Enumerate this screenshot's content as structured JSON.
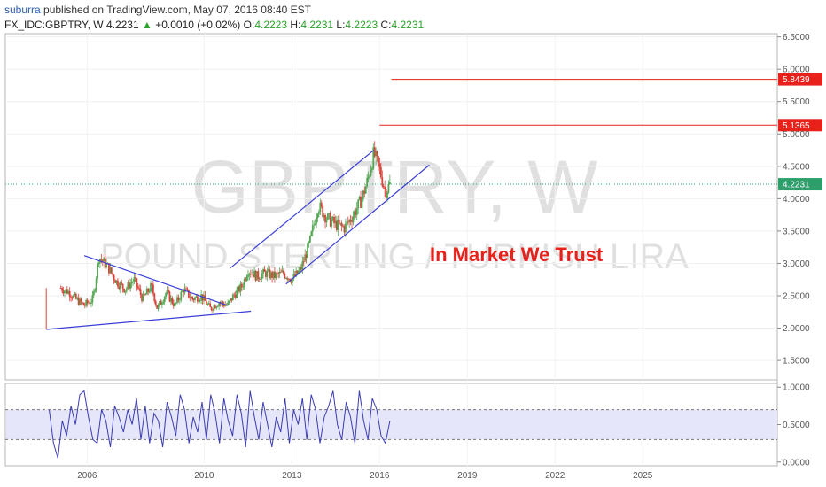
{
  "header": {
    "user": "suburra",
    "published": " published on TradingView.com, May 07, 2016 08:40 EST"
  },
  "legend": {
    "symbol": "FX_IDC:GBPTRY, W",
    "last": "4.2231",
    "arrow": "▲",
    "change": "+0.0010 (+0.02%)",
    "o_label": "O:",
    "o": "4.2223",
    "h_label": "H:",
    "h": "4.2231",
    "l_label": "L:",
    "l": "4.2223",
    "c_label": "C:",
    "c": "4.2231"
  },
  "colors": {
    "candle_up": "#53a653",
    "candle_down": "#d8443c",
    "drawing": "#3a3fd8",
    "level_line": "#e8211a",
    "price_line": "#2e9e6b",
    "osc_line": "#3b3bb0",
    "osc_band": "#e6e6fb",
    "annotation": "#e8211a"
  },
  "chart_data": {
    "type": "candlestick",
    "watermark": "GBPTRY, W",
    "watermark_sub": "POUND STERLING / TURKISH LIRA",
    "annotation": "In Market We Trust",
    "x_ticks": [
      "2006",
      "2010",
      "2013",
      "2016",
      "2019",
      "2022",
      "2025"
    ],
    "x_tick_years": [
      2006,
      2010,
      2013,
      2016,
      2019,
      2022,
      2025
    ],
    "y_ticks": [
      "1.5000",
      "2.0000",
      "2.5000",
      "3.0000",
      "3.5000",
      "4.0000",
      "4.5000",
      "5.0000",
      "5.5000",
      "6.0000",
      "6.5000"
    ],
    "ylim": [
      1.2,
      6.55
    ],
    "xlim": [
      2003.2,
      2029.6
    ],
    "current_price": 4.2231,
    "current_price_label": "4.2231",
    "levels": [
      {
        "label": "5.8439",
        "value": 5.8439,
        "from_year": 2016.4
      },
      {
        "label": "5.1365",
        "value": 5.1365,
        "from_year": 2016.0
      }
    ],
    "price_path": [
      [
        2005.1,
        2.62
      ],
      [
        2005.4,
        2.55
      ],
      [
        2005.6,
        2.45
      ],
      [
        2005.9,
        2.35
      ],
      [
        2006.2,
        2.45
      ],
      [
        2006.4,
        3.1
      ],
      [
        2006.7,
        2.95
      ],
      [
        2007.0,
        2.72
      ],
      [
        2007.3,
        2.6
      ],
      [
        2007.6,
        2.75
      ],
      [
        2007.9,
        2.45
      ],
      [
        2008.2,
        2.65
      ],
      [
        2008.4,
        2.3
      ],
      [
        2008.7,
        2.55
      ],
      [
        2009.0,
        2.35
      ],
      [
        2009.3,
        2.6
      ],
      [
        2009.6,
        2.45
      ],
      [
        2009.9,
        2.5
      ],
      [
        2010.2,
        2.3
      ],
      [
        2010.5,
        2.4
      ],
      [
        2010.8,
        2.35
      ],
      [
        2011.0,
        2.5
      ],
      [
        2011.3,
        2.65
      ],
      [
        2011.5,
        2.9
      ],
      [
        2011.8,
        2.8
      ],
      [
        2012.1,
        2.85
      ],
      [
        2012.4,
        2.8
      ],
      [
        2012.7,
        2.85
      ],
      [
        2013.0,
        2.75
      ],
      [
        2013.3,
        2.9
      ],
      [
        2013.6,
        3.3
      ],
      [
        2013.9,
        3.9
      ],
      [
        2014.2,
        3.7
      ],
      [
        2014.5,
        3.6
      ],
      [
        2014.8,
        3.55
      ],
      [
        2015.1,
        3.75
      ],
      [
        2015.4,
        4.0
      ],
      [
        2015.6,
        4.3
      ],
      [
        2015.8,
        4.7
      ],
      [
        2016.0,
        4.45
      ],
      [
        2016.2,
        4.1
      ],
      [
        2016.35,
        4.2231
      ]
    ],
    "drawings": [
      {
        "name": "triangle-upper",
        "points": [
          [
            2005.9,
            3.12
          ],
          [
            2010.8,
            2.35
          ]
        ]
      },
      {
        "name": "triangle-lower",
        "points": [
          [
            2004.6,
            1.98
          ],
          [
            2011.6,
            2.26
          ]
        ]
      },
      {
        "name": "channel-upper",
        "points": [
          [
            2010.9,
            2.93
          ],
          [
            2015.8,
            4.75
          ]
        ]
      },
      {
        "name": "channel-lower",
        "points": [
          [
            2012.8,
            2.68
          ],
          [
            2017.7,
            4.52
          ]
        ]
      }
    ],
    "oscillator": {
      "ylim": [
        -0.05,
        1.05
      ],
      "y_ticks": [
        "0.0000",
        "0.5000",
        "1.0000"
      ],
      "band": [
        0.3,
        0.7
      ],
      "values": [
        0.7,
        0.25,
        0.05,
        0.55,
        0.35,
        0.75,
        0.5,
        0.9,
        0.95,
        0.6,
        0.3,
        0.25,
        0.7,
        0.55,
        0.2,
        0.75,
        0.6,
        0.4,
        0.7,
        0.5,
        0.85,
        0.3,
        0.75,
        0.25,
        0.65,
        0.55,
        0.2,
        0.8,
        0.6,
        0.35,
        0.9,
        0.7,
        0.25,
        0.6,
        0.4,
        0.8,
        0.3,
        0.9,
        0.65,
        0.25,
        0.85,
        0.55,
        0.35,
        0.9,
        0.65,
        0.2,
        0.95,
        0.6,
        0.3,
        0.8,
        0.5,
        0.2,
        0.6,
        0.4,
        0.85,
        0.25,
        0.7,
        0.5,
        0.85,
        0.3,
        0.9,
        0.7,
        0.25,
        0.6,
        0.75,
        0.95,
        0.5,
        0.3,
        0.8,
        0.6,
        0.25,
        0.95,
        0.55,
        0.3,
        0.85,
        0.7,
        0.35,
        0.25,
        0.55
      ]
    }
  }
}
